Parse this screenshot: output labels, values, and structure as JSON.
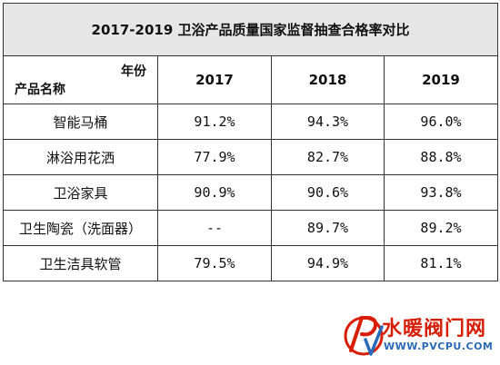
{
  "table": {
    "title": "2017-2019 卫浴产品质量国家监督抽查合格率对比",
    "corner_year_label": "年份",
    "corner_name_label": "产品名称",
    "years": [
      "2017",
      "2018",
      "2019"
    ],
    "rows": [
      {
        "product": "智能马桶",
        "values": [
          "91.2%",
          "94.3%",
          "96.0%"
        ]
      },
      {
        "product": "淋浴用花洒",
        "values": [
          "77.9%",
          "82.7%",
          "88.8%"
        ]
      },
      {
        "product": "卫浴家具",
        "values": [
          "90.9%",
          "90.6%",
          "93.8%"
        ]
      },
      {
        "product": "卫生陶瓷（洗面器）",
        "values": [
          "--",
          "89.7%",
          "89.2%"
        ]
      },
      {
        "product": "卫生洁具软管",
        "values": [
          "79.5%",
          "94.9%",
          "81.1%"
        ]
      }
    ]
  },
  "watermark": {
    "site_name": "水暖阀门网",
    "url": "WWW.PVCPU.COM",
    "brand_color": "#d81e06",
    "url_color": "#2a6ab8"
  }
}
